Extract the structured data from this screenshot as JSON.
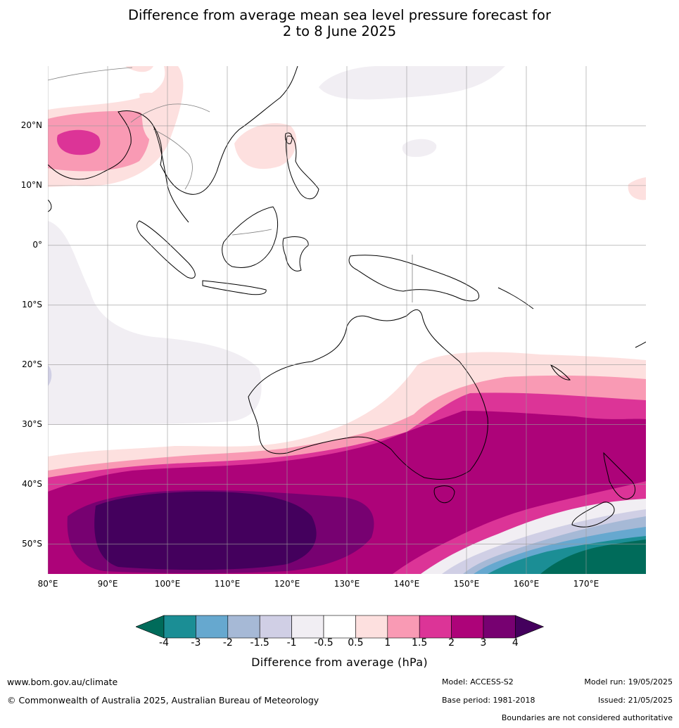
{
  "title": {
    "line1": "Difference from average mean sea level pressure forecast for",
    "line2": "2 to 8 June 2025"
  },
  "map": {
    "region": "Australia / Maritime Continent / Southern Ocean",
    "lat_labels": [
      "20°N",
      "10°N",
      "0°",
      "10°S",
      "20°S",
      "30°S",
      "40°S",
      "50°S"
    ],
    "lon_labels": [
      "80°E",
      "90°E",
      "100°E",
      "110°E",
      "120°E",
      "130°E",
      "140°E",
      "150°E",
      "160°E",
      "170°E"
    ],
    "colors": {
      "land_outline": "#000000",
      "borders": "#808080",
      "grid": "#999999"
    }
  },
  "colorbar": {
    "title": "Difference from average (hPa)",
    "ticks": [
      "-4",
      "-3",
      "-2",
      "-1.5",
      "-1",
      "-0.5",
      "0.5",
      "1",
      "1.5",
      "2",
      "3",
      "4"
    ],
    "colors": {
      "below_min": "#006b5a",
      "n4_n3": "#1b8e95",
      "n3_n2": "#66a8cf",
      "n2_n15": "#a6b9d6",
      "n15_n1": "#d0cfe5",
      "n1_n05": "#f1eef3",
      "n05_05": "#ffffff",
      "p05_1": "#fde0df",
      "p1_15": "#f99ab4",
      "p15_2": "#dc3497",
      "p2_3": "#ad0379",
      "p3_4": "#770171",
      "above_max": "#44005d"
    }
  },
  "footer": {
    "website": "www.bom.gov.au/climate",
    "copyright": "© Commonwealth of Australia 2025, Australian Bureau of Meteorology",
    "model": "Model: ACCESS-S2",
    "base_period": "Base period: 1981-2018",
    "model_run": "Model run: 19/05/2025",
    "issued": "Issued: 21/05/2025",
    "disclaimer": "Boundaries are not considered authoritative"
  }
}
